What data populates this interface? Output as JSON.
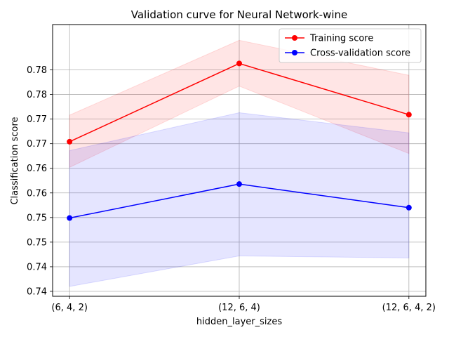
{
  "chart_data": {
    "type": "line",
    "title": "Validation curve for Neural Network-wine",
    "xlabel": "hidden_layer_sizes",
    "ylabel": "Classification score",
    "categories": [
      "(6, 4, 2)",
      "(12, 6, 4)",
      "(12, 6, 4, 2)"
    ],
    "ylim": [
      0.7365,
      0.7917
    ],
    "ytick_values": [
      0.7375,
      0.7425,
      0.7475,
      0.7525,
      0.7575,
      0.7625,
      0.7675,
      0.7725,
      0.7775,
      0.7825
    ],
    "ytick_labels": [
      "0.74",
      "0.74",
      "0.75",
      "0.75",
      "0.76",
      "0.76",
      "0.77",
      "0.77",
      "0.78",
      "0.78"
    ],
    "grid": true,
    "legend_position": "top-right",
    "series": [
      {
        "name": "Training score",
        "color": "#ff0000",
        "band_color": "#ff0000",
        "values": [
          0.7679,
          0.7838,
          0.7734
        ],
        "band_upper": [
          0.7733,
          0.7885,
          0.7814
        ],
        "band_lower": [
          0.7627,
          0.7792,
          0.7655
        ]
      },
      {
        "name": "Cross-validation score",
        "color": "#0000ff",
        "band_color": "#0000ff",
        "values": [
          0.7524,
          0.7593,
          0.7545
        ],
        "band_upper": [
          0.7661,
          0.7738,
          0.7697
        ],
        "band_lower": [
          0.7385,
          0.7447,
          0.7443
        ]
      }
    ]
  }
}
